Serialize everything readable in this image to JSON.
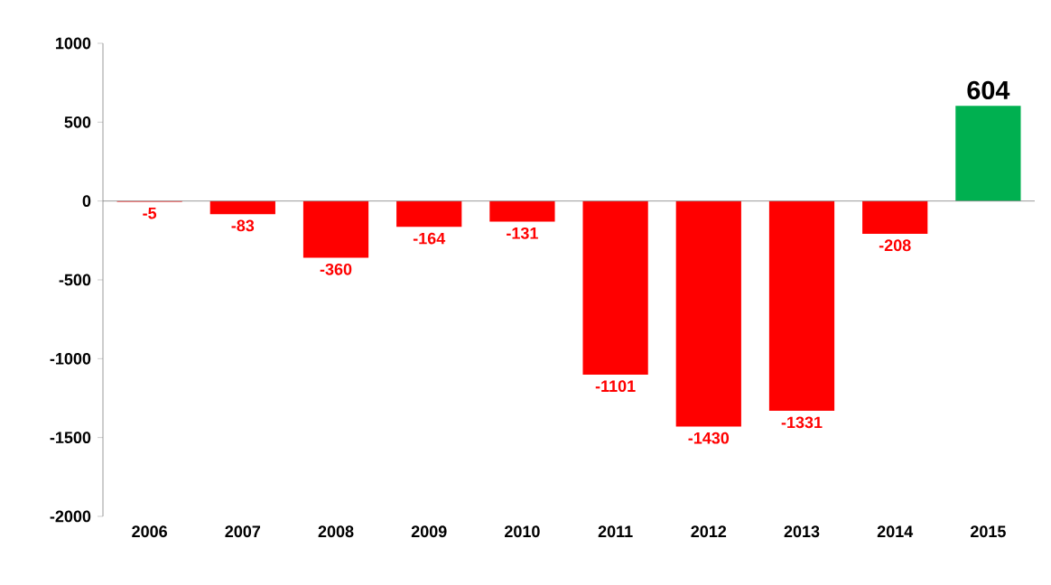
{
  "chart_data": {
    "type": "bar",
    "categories": [
      "2006",
      "2007",
      "2008",
      "2009",
      "2010",
      "2011",
      "2012",
      "2013",
      "2014",
      "2015"
    ],
    "values": [
      -5,
      -83,
      -360,
      -164,
      -131,
      -1101,
      -1430,
      -1331,
      -208,
      604
    ],
    "colors": [
      "#ff0000",
      "#ff0000",
      "#ff0000",
      "#ff0000",
      "#ff0000",
      "#ff0000",
      "#ff0000",
      "#ff0000",
      "#ff0000",
      "#00b050"
    ],
    "ylim": [
      -2000,
      1000
    ],
    "yticks": [
      -2000,
      -1500,
      -1000,
      -500,
      0,
      500,
      1000
    ],
    "data_labels": true
  }
}
